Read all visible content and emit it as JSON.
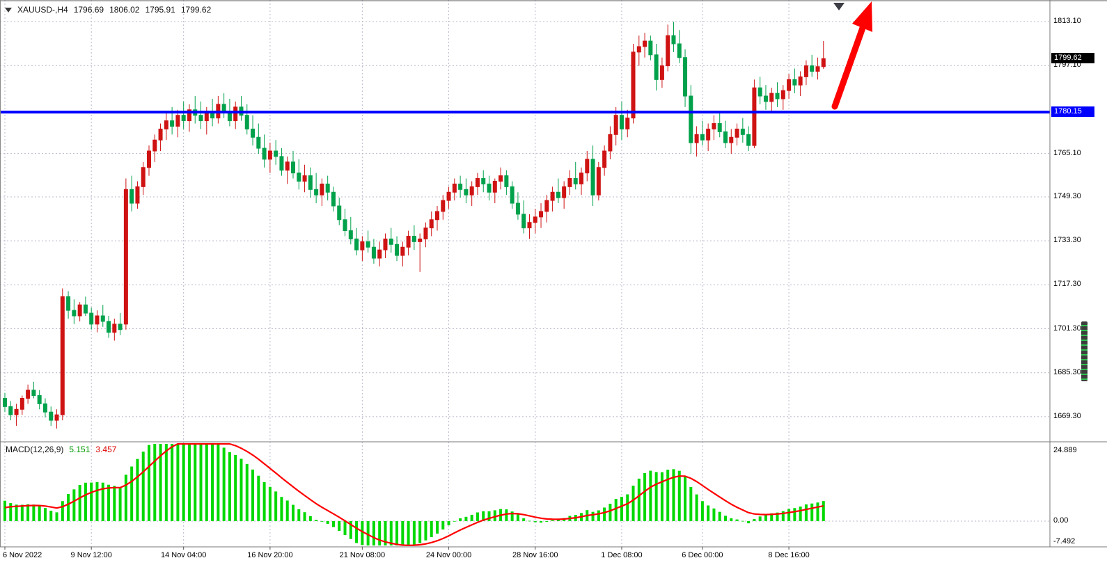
{
  "header": {
    "symbol_period": "XAUUSD-,H4",
    "open": "1796.69",
    "high": "1806.02",
    "low": "1795.91",
    "close": "1799.62"
  },
  "price_axis": {
    "labels": [
      "1813.10",
      "1797.10",
      "1765.10",
      "1749.30",
      "1733.30",
      "1717.30",
      "1701.30",
      "1685.30",
      "1669.30"
    ],
    "current_price": "1799.62",
    "level_price": "1780.15"
  },
  "macd_panel": {
    "label": "MACD(12,26,9)",
    "value_main": "5.151",
    "value_signal": "3.457",
    "axis_labels": [
      "24.889",
      "0.00",
      "-7.492"
    ]
  },
  "colors": {
    "bull": "#cf1212",
    "bear": "#00a14b",
    "grid": "#b8b8cc",
    "level_line": "#0000ff",
    "arrow": "#ff0000",
    "macd_histogram": "#00d800",
    "macd_signal": "#ff0000",
    "current_badge_bg": "#000000",
    "level_badge_bg": "#0000ff"
  },
  "chart_data": {
    "type": "candlestick",
    "title": "XAUUSD- H4 with MACD(12,26,9)",
    "symbol": "XAUUSD-",
    "timeframe": "H4",
    "ohlc_last": {
      "open": 1796.69,
      "high": 1806.02,
      "low": 1795.91,
      "close": 1799.62
    },
    "last_price": 1799.62,
    "level_line_price": 1780.15,
    "price_axis_values": [
      1813.1,
      1797.1,
      1765.1,
      1749.3,
      1733.3,
      1717.3,
      1701.3,
      1685.3,
      1669.3
    ],
    "macd_axis_values": [
      24.889,
      0.0,
      -7.492
    ],
    "indicator": {
      "name": "MACD",
      "params": [
        12,
        26,
        9
      ],
      "last_main": 5.151,
      "last_signal": 3.457
    },
    "annotations": [
      {
        "type": "horizontal_line",
        "price": 1780.15,
        "color": "#0000ff"
      },
      {
        "type": "arrow_up",
        "color": "#ff0000"
      },
      {
        "type": "down_marker",
        "color": "#3d3d46"
      }
    ],
    "time_ticks": [
      {
        "bar": 0,
        "label": "6 Nov 2022"
      },
      {
        "bar": 15,
        "label": "9 Nov 12:00"
      },
      {
        "bar": 31,
        "label": "14 Nov 04:00"
      },
      {
        "bar": 46,
        "label": "16 Nov 20:00"
      },
      {
        "bar": 62,
        "label": "21 Nov 08:00"
      },
      {
        "bar": 77,
        "label": "24 Nov 00:00"
      },
      {
        "bar": 92,
        "label": "28 Nov 16:00"
      },
      {
        "bar": 107,
        "label": "1 Dec 08:00"
      },
      {
        "bar": 121,
        "label": "6 Dec 00:00"
      },
      {
        "bar": 136,
        "label": "8 Dec 16:00"
      }
    ],
    "candles": [
      [
        1676,
        1678,
        1671,
        1673
      ],
      [
        1673,
        1675,
        1668,
        1670
      ],
      [
        1670,
        1674,
        1666,
        1672
      ],
      [
        1672,
        1677,
        1670,
        1676
      ],
      [
        1676,
        1681,
        1674,
        1679
      ],
      [
        1679,
        1682,
        1676,
        1677
      ],
      [
        1677,
        1679,
        1672,
        1674
      ],
      [
        1674,
        1676,
        1669,
        1671
      ],
      [
        1671,
        1673,
        1666,
        1668
      ],
      [
        1668,
        1672,
        1665,
        1670
      ],
      [
        1670,
        1716,
        1668,
        1713
      ],
      [
        1713,
        1715,
        1705,
        1708
      ],
      [
        1708,
        1712,
        1703,
        1706
      ],
      [
        1706,
        1711,
        1704,
        1710
      ],
      [
        1710,
        1713,
        1706,
        1707
      ],
      [
        1707,
        1709,
        1701,
        1703
      ],
      [
        1703,
        1708,
        1700,
        1706
      ],
      [
        1706,
        1710,
        1702,
        1704
      ],
      [
        1704,
        1706,
        1698,
        1700
      ],
      [
        1700,
        1705,
        1697,
        1703
      ],
      [
        1703,
        1707,
        1699,
        1701
      ],
      [
        1703,
        1756,
        1701,
        1752
      ],
      [
        1752,
        1757,
        1744,
        1747
      ],
      [
        1747,
        1755,
        1745,
        1753
      ],
      [
        1753,
        1762,
        1750,
        1760
      ],
      [
        1760,
        1768,
        1757,
        1766
      ],
      [
        1766,
        1772,
        1762,
        1770
      ],
      [
        1770,
        1776,
        1766,
        1774
      ],
      [
        1774,
        1780,
        1770,
        1777
      ],
      [
        1777,
        1782,
        1772,
        1775
      ],
      [
        1775,
        1781,
        1771,
        1779
      ],
      [
        1779,
        1784,
        1774,
        1777
      ],
      [
        1777,
        1783,
        1773,
        1781
      ],
      [
        1781,
        1786,
        1776,
        1779
      ],
      [
        1779,
        1784,
        1774,
        1777
      ],
      [
        1777,
        1782,
        1772,
        1780
      ],
      [
        1780,
        1785,
        1775,
        1778
      ],
      [
        1778,
        1786,
        1776,
        1783
      ],
      [
        1783,
        1787,
        1778,
        1780
      ],
      [
        1780,
        1785,
        1775,
        1777
      ],
      [
        1777,
        1784,
        1774,
        1782
      ],
      [
        1782,
        1786,
        1777,
        1779
      ],
      [
        1779,
        1783,
        1772,
        1774
      ],
      [
        1774,
        1779,
        1768,
        1771
      ],
      [
        1771,
        1776,
        1765,
        1767
      ],
      [
        1767,
        1772,
        1760,
        1763
      ],
      [
        1763,
        1769,
        1758,
        1766
      ],
      [
        1766,
        1770,
        1761,
        1764
      ],
      [
        1764,
        1767,
        1757,
        1759
      ],
      [
        1759,
        1764,
        1754,
        1762
      ],
      [
        1762,
        1766,
        1756,
        1758
      ],
      [
        1758,
        1763,
        1752,
        1755
      ],
      [
        1755,
        1761,
        1751,
        1757
      ],
      [
        1757,
        1760,
        1749,
        1752
      ],
      [
        1752,
        1758,
        1747,
        1750
      ],
      [
        1750,
        1756,
        1746,
        1754
      ],
      [
        1754,
        1757,
        1748,
        1751
      ],
      [
        1751,
        1753,
        1744,
        1746
      ],
      [
        1746,
        1749,
        1739,
        1741
      ],
      [
        1741,
        1745,
        1735,
        1737
      ],
      [
        1737,
        1742,
        1732,
        1734
      ],
      [
        1734,
        1738,
        1728,
        1730
      ],
      [
        1730,
        1735,
        1726,
        1733
      ],
      [
        1733,
        1737,
        1729,
        1731
      ],
      [
        1731,
        1734,
        1725,
        1727
      ],
      [
        1727,
        1733,
        1724,
        1730
      ],
      [
        1730,
        1736,
        1727,
        1734
      ],
      [
        1734,
        1738,
        1729,
        1732
      ],
      [
        1732,
        1735,
        1726,
        1728
      ],
      [
        1728,
        1733,
        1724,
        1731
      ],
      [
        1731,
        1737,
        1728,
        1735
      ],
      [
        1735,
        1739,
        1730,
        1733
      ],
      [
        1733,
        1736,
        1722,
        1734
      ],
      [
        1734,
        1740,
        1731,
        1738
      ],
      [
        1738,
        1744,
        1735,
        1741
      ],
      [
        1741,
        1746,
        1737,
        1744
      ],
      [
        1744,
        1750,
        1741,
        1748
      ],
      [
        1748,
        1753,
        1745,
        1751
      ],
      [
        1751,
        1756,
        1748,
        1754
      ],
      [
        1754,
        1757,
        1749,
        1752
      ],
      [
        1752,
        1756,
        1747,
        1750
      ],
      [
        1750,
        1755,
        1746,
        1753
      ],
      [
        1753,
        1758,
        1750,
        1756
      ],
      [
        1756,
        1759,
        1751,
        1754
      ],
      [
        1754,
        1757,
        1748,
        1751
      ],
      [
        1751,
        1756,
        1747,
        1755
      ],
      [
        1755,
        1760,
        1752,
        1757
      ],
      [
        1757,
        1759,
        1750,
        1753
      ],
      [
        1753,
        1755,
        1745,
        1747
      ],
      [
        1747,
        1751,
        1741,
        1743
      ],
      [
        1743,
        1748,
        1736,
        1738
      ],
      [
        1738,
        1743,
        1734,
        1740
      ],
      [
        1740,
        1745,
        1736,
        1742
      ],
      [
        1742,
        1747,
        1738,
        1744
      ],
      [
        1744,
        1750,
        1740,
        1748
      ],
      [
        1748,
        1753,
        1744,
        1751
      ],
      [
        1751,
        1756,
        1747,
        1749
      ],
      [
        1749,
        1755,
        1745,
        1753
      ],
      [
        1753,
        1759,
        1750,
        1756
      ],
      [
        1756,
        1762,
        1752,
        1754
      ],
      [
        1754,
        1760,
        1750,
        1758
      ],
      [
        1758,
        1766,
        1755,
        1763
      ],
      [
        1763,
        1768,
        1746,
        1750
      ],
      [
        1750,
        1762,
        1748,
        1760
      ],
      [
        1760,
        1768,
        1757,
        1766
      ],
      [
        1766,
        1775,
        1763,
        1772
      ],
      [
        1772,
        1782,
        1768,
        1779
      ],
      [
        1779,
        1784,
        1770,
        1774
      ],
      [
        1774,
        1781,
        1771,
        1778
      ],
      [
        1778,
        1805,
        1776,
        1802
      ],
      [
        1802,
        1808,
        1797,
        1804
      ],
      [
        1804,
        1809,
        1800,
        1806
      ],
      [
        1806,
        1808,
        1799,
        1801
      ],
      [
        1801,
        1805,
        1788,
        1792
      ],
      [
        1792,
        1800,
        1789,
        1797
      ],
      [
        1797,
        1812,
        1795,
        1808
      ],
      [
        1808,
        1813,
        1802,
        1805
      ],
      [
        1805,
        1810,
        1798,
        1800
      ],
      [
        1800,
        1803,
        1782,
        1786
      ],
      [
        1786,
        1790,
        1765,
        1769
      ],
      [
        1769,
        1775,
        1764,
        1772
      ],
      [
        1772,
        1777,
        1768,
        1770
      ],
      [
        1770,
        1776,
        1766,
        1774
      ],
      [
        1774,
        1779,
        1770,
        1776
      ],
      [
        1776,
        1780,
        1771,
        1773
      ],
      [
        1773,
        1777,
        1767,
        1769
      ],
      [
        1769,
        1774,
        1765,
        1771
      ],
      [
        1771,
        1776,
        1768,
        1774
      ],
      [
        1774,
        1778,
        1769,
        1772
      ],
      [
        1772,
        1775,
        1766,
        1768
      ],
      [
        1768,
        1792,
        1767,
        1789
      ],
      [
        1789,
        1793,
        1783,
        1786
      ],
      [
        1786,
        1790,
        1781,
        1784
      ],
      [
        1784,
        1789,
        1780,
        1787
      ],
      [
        1787,
        1791,
        1782,
        1785
      ],
      [
        1785,
        1790,
        1781,
        1788
      ],
      [
        1788,
        1794,
        1785,
        1792
      ],
      [
        1792,
        1796,
        1787,
        1790
      ],
      [
        1790,
        1795,
        1786,
        1793
      ],
      [
        1793,
        1799,
        1790,
        1797
      ],
      [
        1797,
        1801,
        1793,
        1795
      ],
      [
        1795,
        1800,
        1792,
        1796.7
      ],
      [
        1796.69,
        1806.02,
        1795.91,
        1799.62
      ]
    ]
  }
}
